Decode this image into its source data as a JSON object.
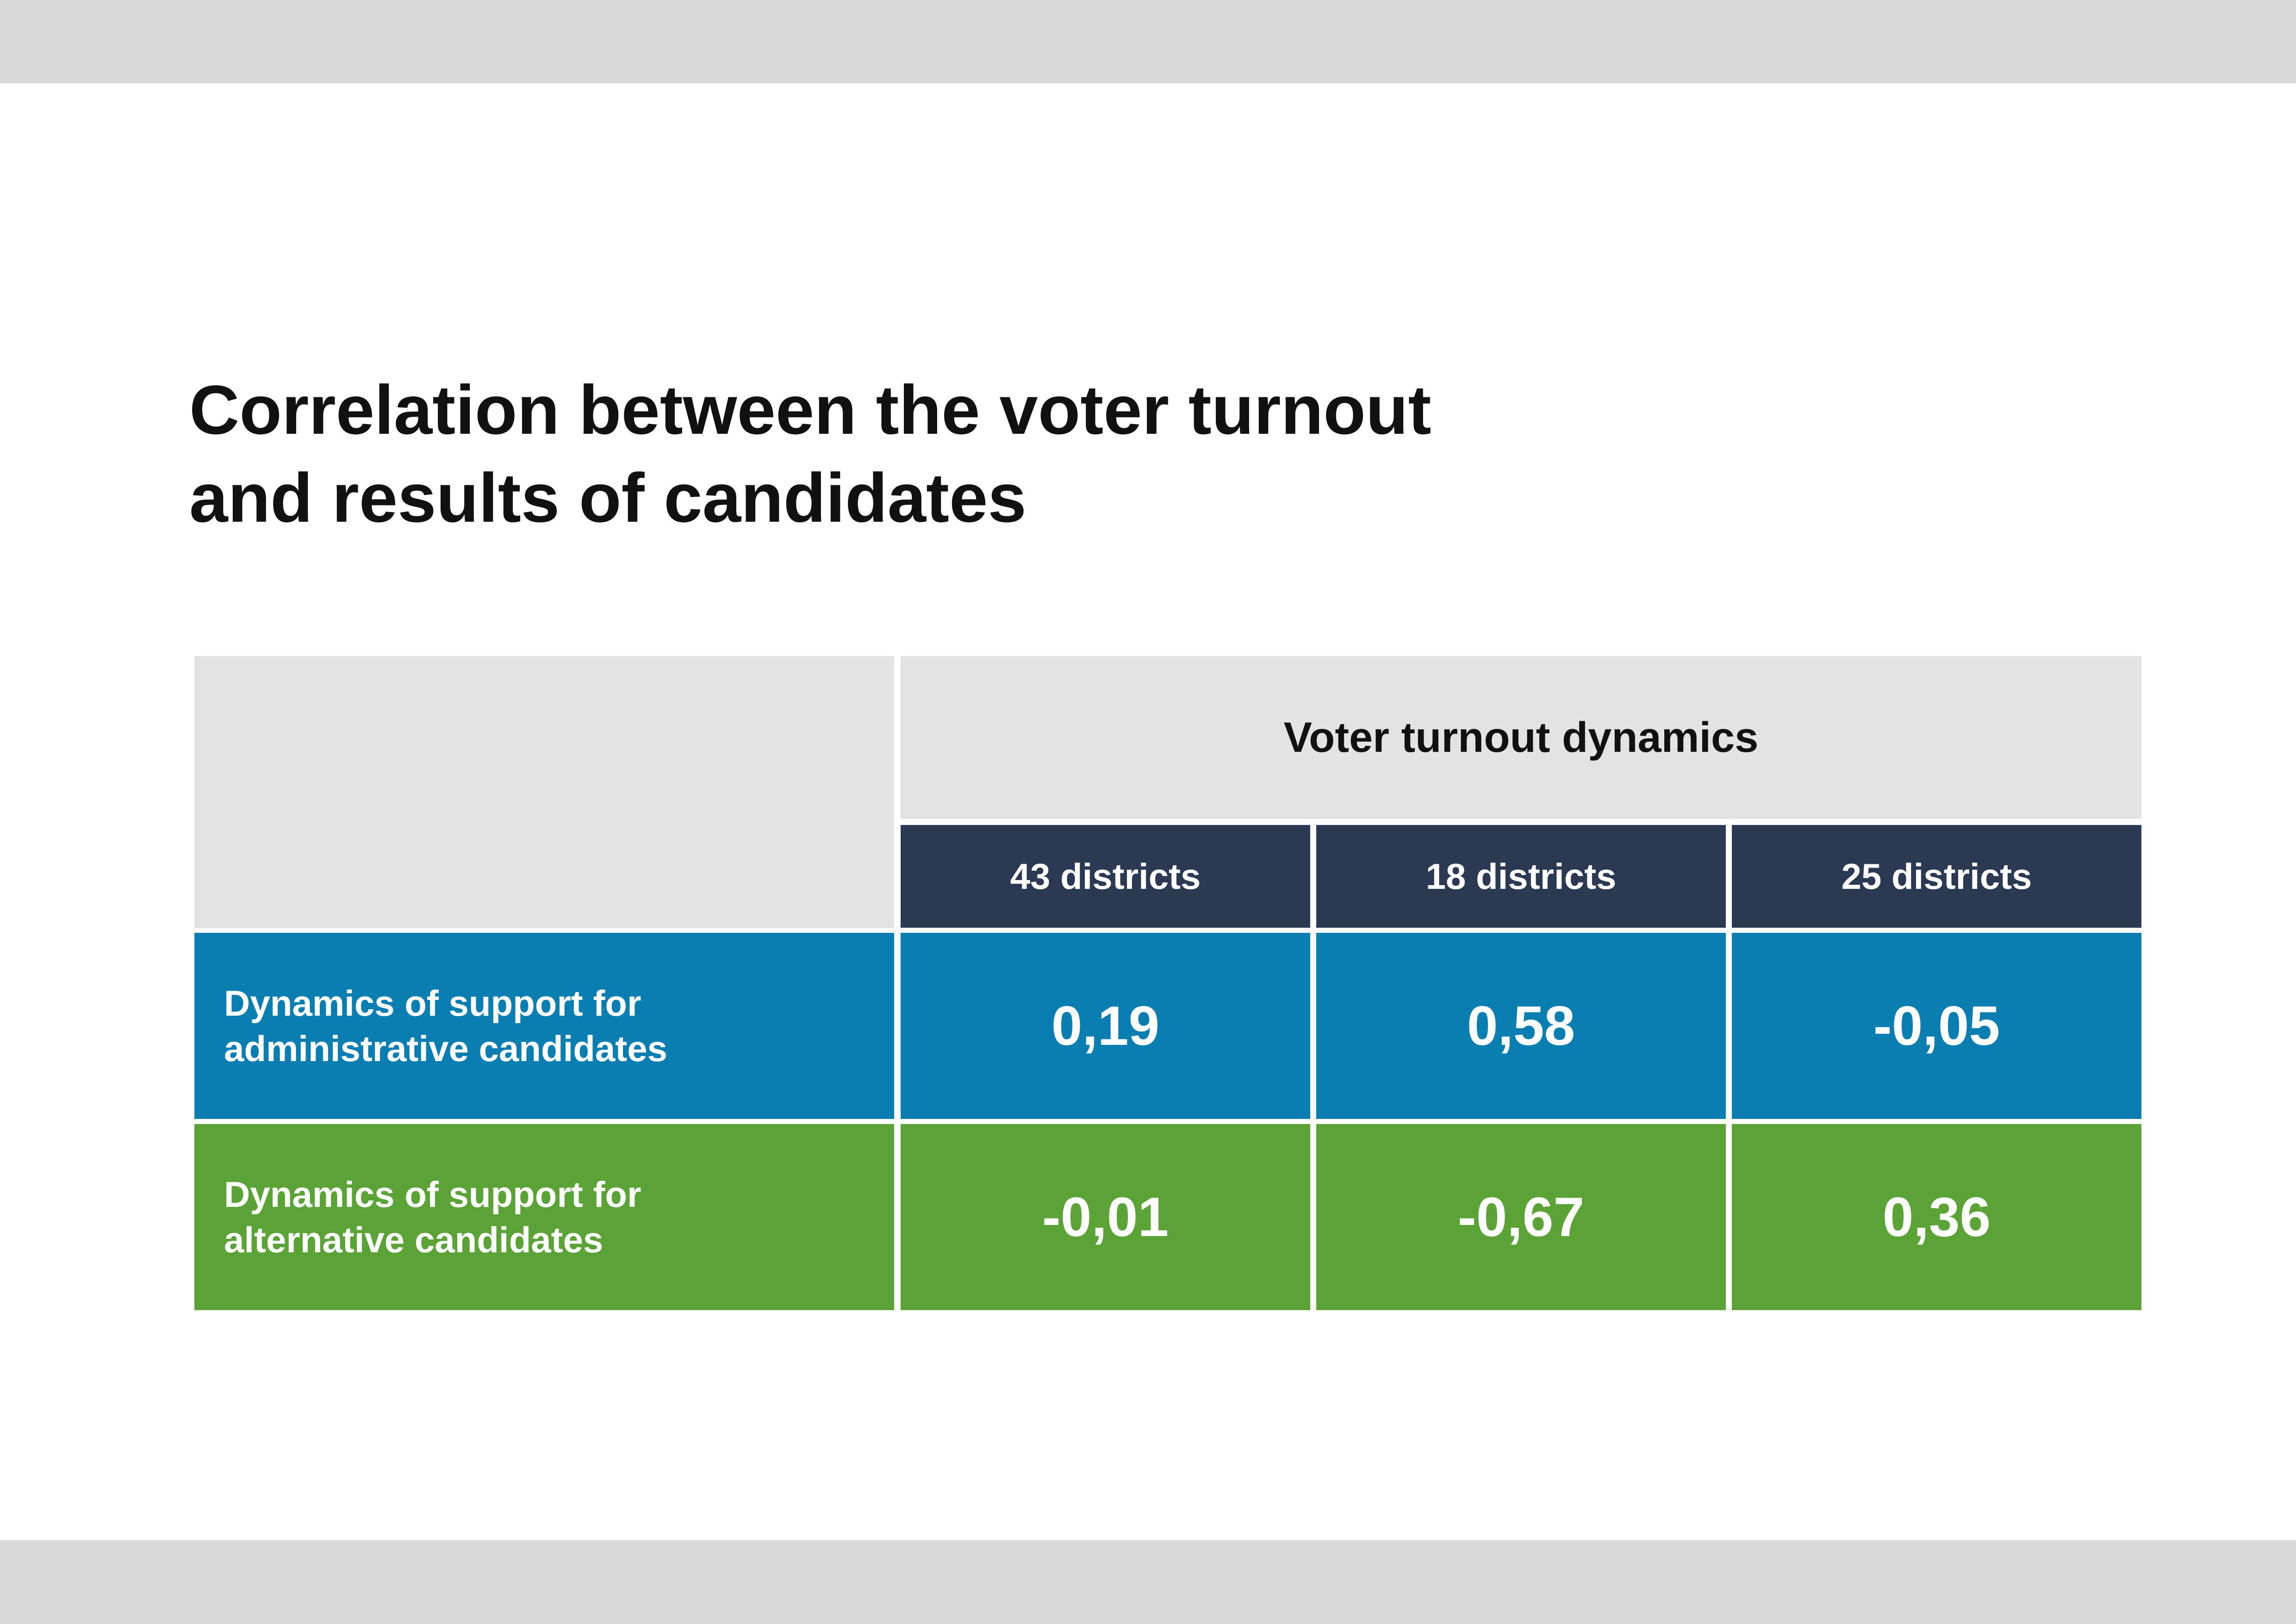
{
  "title_lines": [
    "Correlation between the voter turnout",
    "and results of candidates"
  ],
  "colors": {
    "band": "#d9d9d9",
    "header_gray": "#e3e3e3",
    "header_navy": "#2b3a52",
    "row_blue": "#0a7eb1",
    "row_green": "#5ba336"
  },
  "chart_data": {
    "type": "table",
    "title": "Correlation between the voter turnout and results of candidates",
    "column_group": "Voter turnout dynamics",
    "columns": [
      "43 districts",
      "18 districts",
      "25 districts"
    ],
    "rows": [
      {
        "label_lines": [
          "Dynamics of support for",
          "administrative candidates"
        ],
        "values": [
          "0,19",
          "0,58",
          "-0,05"
        ]
      },
      {
        "label_lines": [
          "Dynamics of support for",
          "alternative candidates"
        ],
        "values": [
          "-0,01",
          "-0,67",
          "0,36"
        ]
      }
    ]
  }
}
